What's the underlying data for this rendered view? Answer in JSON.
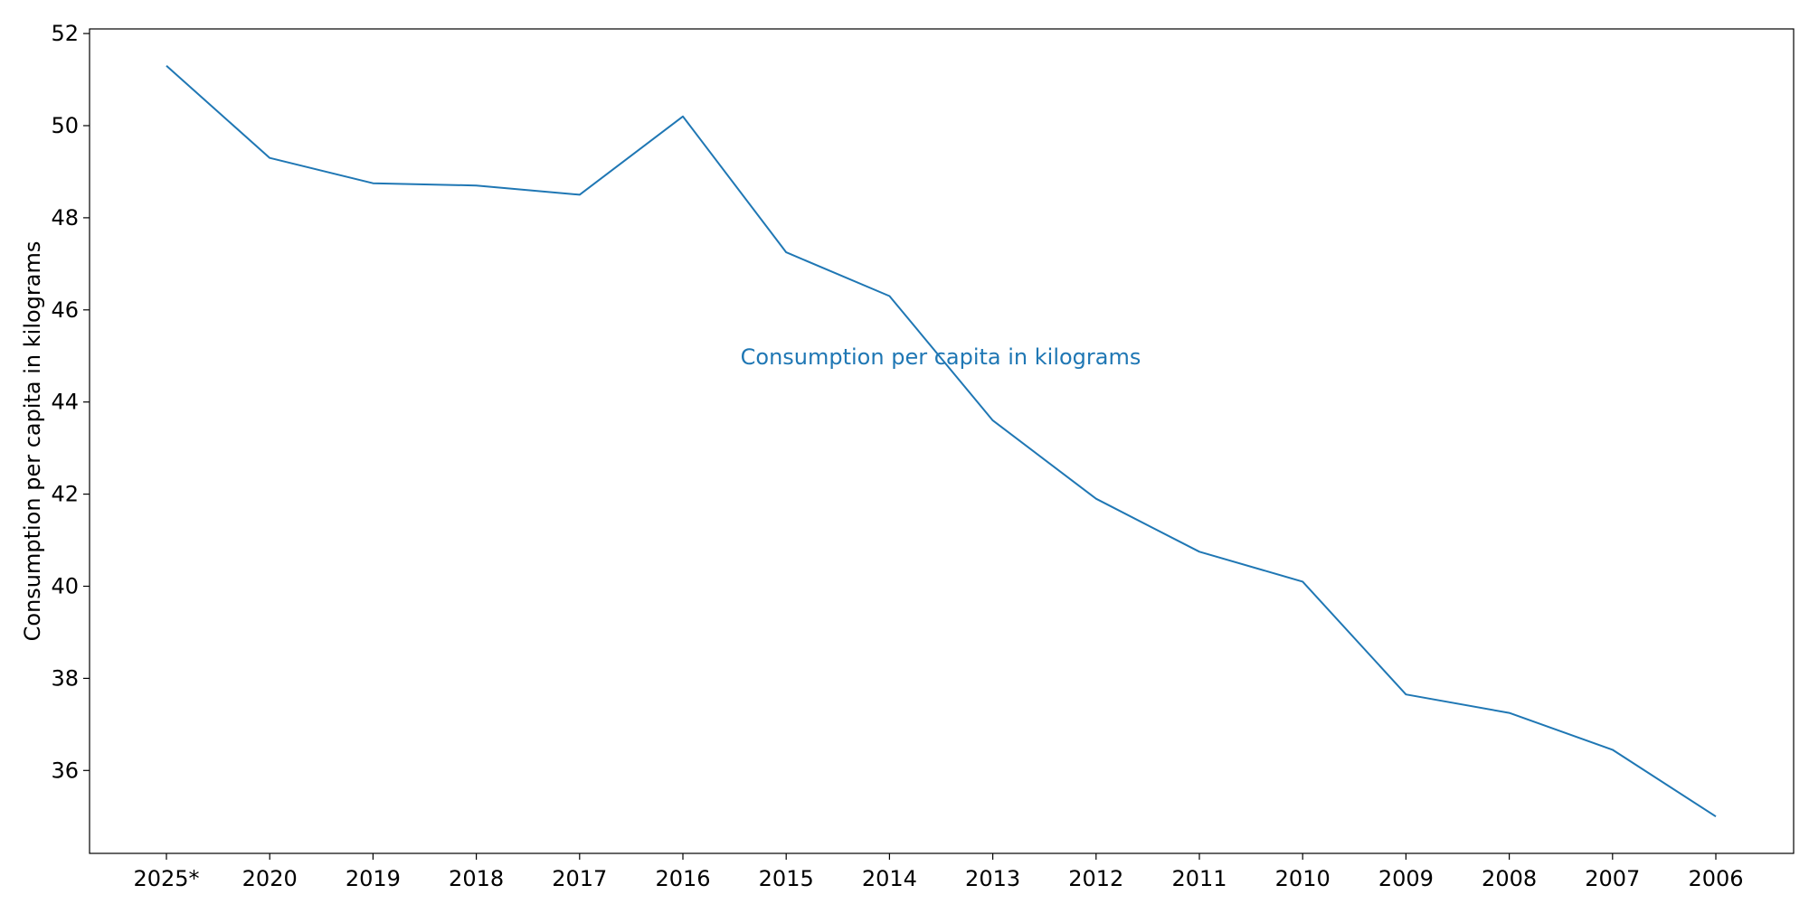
{
  "chart_data": {
    "type": "line",
    "title": "",
    "xlabel": "",
    "ylabel": "Consumption per capita in kilograms",
    "categories": [
      "2025*",
      "2020",
      "2019",
      "2018",
      "2017",
      "2016",
      "2015",
      "2014",
      "2013",
      "2012",
      "2011",
      "2010",
      "2009",
      "2008",
      "2007",
      "2006"
    ],
    "series": [
      {
        "name": "Consumption per capita in kilograms",
        "color": "#1f77b4",
        "values": [
          51.3,
          49.3,
          48.75,
          48.7,
          48.5,
          50.2,
          47.25,
          46.3,
          43.6,
          41.9,
          40.75,
          40.1,
          37.65,
          37.25,
          36.45,
          35.0
        ]
      }
    ],
    "ylim": [
      34.2,
      52.1
    ],
    "yticks": [
      36,
      38,
      40,
      42,
      44,
      46,
      48,
      50,
      52
    ],
    "grid": false,
    "legend": "inline label at center"
  }
}
